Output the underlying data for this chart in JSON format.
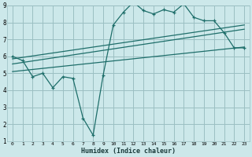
{
  "xlabel": "Humidex (Indice chaleur)",
  "bg_color": "#cce8ea",
  "grid_color": "#9bbfc2",
  "line_color": "#1e6e6a",
  "xlim": [
    -0.5,
    23.5
  ],
  "ylim": [
    1,
    9
  ],
  "xticks": [
    0,
    1,
    2,
    3,
    4,
    5,
    6,
    7,
    8,
    9,
    10,
    11,
    12,
    13,
    14,
    15,
    16,
    17,
    18,
    19,
    20,
    21,
    22,
    23
  ],
  "yticks": [
    1,
    2,
    3,
    4,
    5,
    6,
    7,
    8,
    9
  ],
  "main_x": [
    0,
    1,
    2,
    3,
    4,
    5,
    6,
    7,
    8,
    9,
    10,
    11,
    12,
    13,
    14,
    15,
    16,
    17,
    18,
    19,
    20,
    21,
    22,
    23
  ],
  "main_y": [
    6.0,
    5.75,
    4.8,
    5.0,
    4.15,
    4.8,
    4.7,
    2.35,
    1.35,
    4.9,
    7.85,
    8.6,
    9.2,
    8.7,
    8.5,
    8.75,
    8.6,
    9.1,
    8.3,
    8.1,
    8.1,
    7.4,
    6.5,
    6.5
  ],
  "trend1_x": [
    0,
    23
  ],
  "trend1_y": [
    5.85,
    7.85
  ],
  "trend2_x": [
    0,
    23
  ],
  "trend2_y": [
    5.55,
    7.6
  ],
  "trend3_x": [
    0,
    23
  ],
  "trend3_y": [
    5.1,
    6.55
  ]
}
